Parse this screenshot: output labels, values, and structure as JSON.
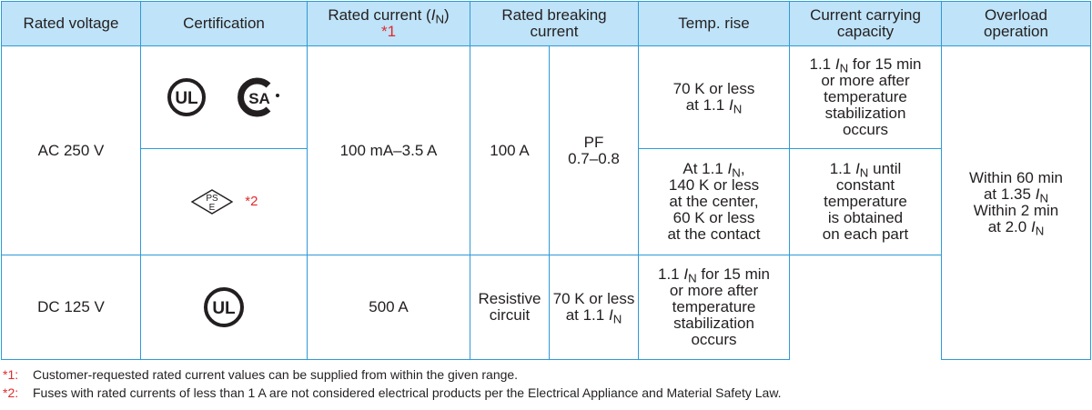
{
  "header": {
    "rated_voltage": "Rated voltage",
    "certification": "Certification",
    "rated_current": "Rated current (",
    "rated_current_sym": "I",
    "rated_current_sub": "N",
    "rated_current_close": ")",
    "rated_current_note": "*1",
    "breaking_line1": "Rated breaking",
    "breaking_line2": "current",
    "temp_rise": "Temp. rise",
    "carry_line1": "Current carrying",
    "carry_line2": "capacity",
    "overload_line1": "Overload",
    "overload_line2": "operation"
  },
  "rows": {
    "ac_voltage": "AC 250 V",
    "dc_voltage": "DC 125 V",
    "rated_current_range": "100 mA–3.5 A",
    "ac_breaking": "100 A",
    "ac_pf_line1": "PF",
    "ac_pf_line2": "0.7–0.8",
    "dc_breaking": "500 A",
    "dc_type_line1": "Resistive",
    "dc_type_line2": "circuit",
    "pse_note": "*2",
    "ul_text": "UL",
    "csa_text": "SA",
    "pse_text_1": "PS",
    "pse_text_2": "E",
    "temp1_a": "70 K or less",
    "temp1_b": "at 1.1",
    "temp2_a": "At 1.1",
    "temp2_b": "140 K or less",
    "temp2_c": "at the center,",
    "temp2_d": "60 K or less",
    "temp2_e": "at the contact",
    "temp3_a": "70 K or less",
    "temp3_b": "at 1.1",
    "carry1_a": "1.1",
    "carry1_a2": "for 15 min",
    "carry1_b": "or more after",
    "carry1_c": "temperature",
    "carry1_d": "stabilization",
    "carry1_e": "occurs",
    "carry2_a": "1.1",
    "carry2_a2": "until",
    "carry2_b": "constant",
    "carry2_c": "temperature",
    "carry2_d": "is obtained",
    "carry2_e": "on each part",
    "carry3_a": "1.1",
    "carry3_a2": "for 15 min",
    "carry3_b": "or more after",
    "carry3_c": "temperature",
    "carry3_d": "stabilization",
    "carry3_e": "occurs",
    "over_a": "Within 60 min",
    "over_b": "at 1.35",
    "over_c": "Within 2 min",
    "over_d": "at 2.0",
    "sym_i": "I",
    "sym_n": "N",
    "comma": ","
  },
  "footnotes": [
    {
      "mark": "*1:",
      "text": "Customer-requested rated current values can be supplied from within the given range."
    },
    {
      "mark": "*2:",
      "text": "Fuses with rated currents of less than 1 A are not considered electrical products per the Electrical Appliance and Material Safety Law."
    }
  ],
  "colors": {
    "border": "#2d9ad6",
    "header_bg": "#bfe3f8",
    "note_red": "#e02a2a",
    "text": "#231f20"
  },
  "icons": [
    "ul-listed-icon",
    "csa-certified-icon",
    "pse-diamond-icon",
    "ul-recognized-icon"
  ]
}
